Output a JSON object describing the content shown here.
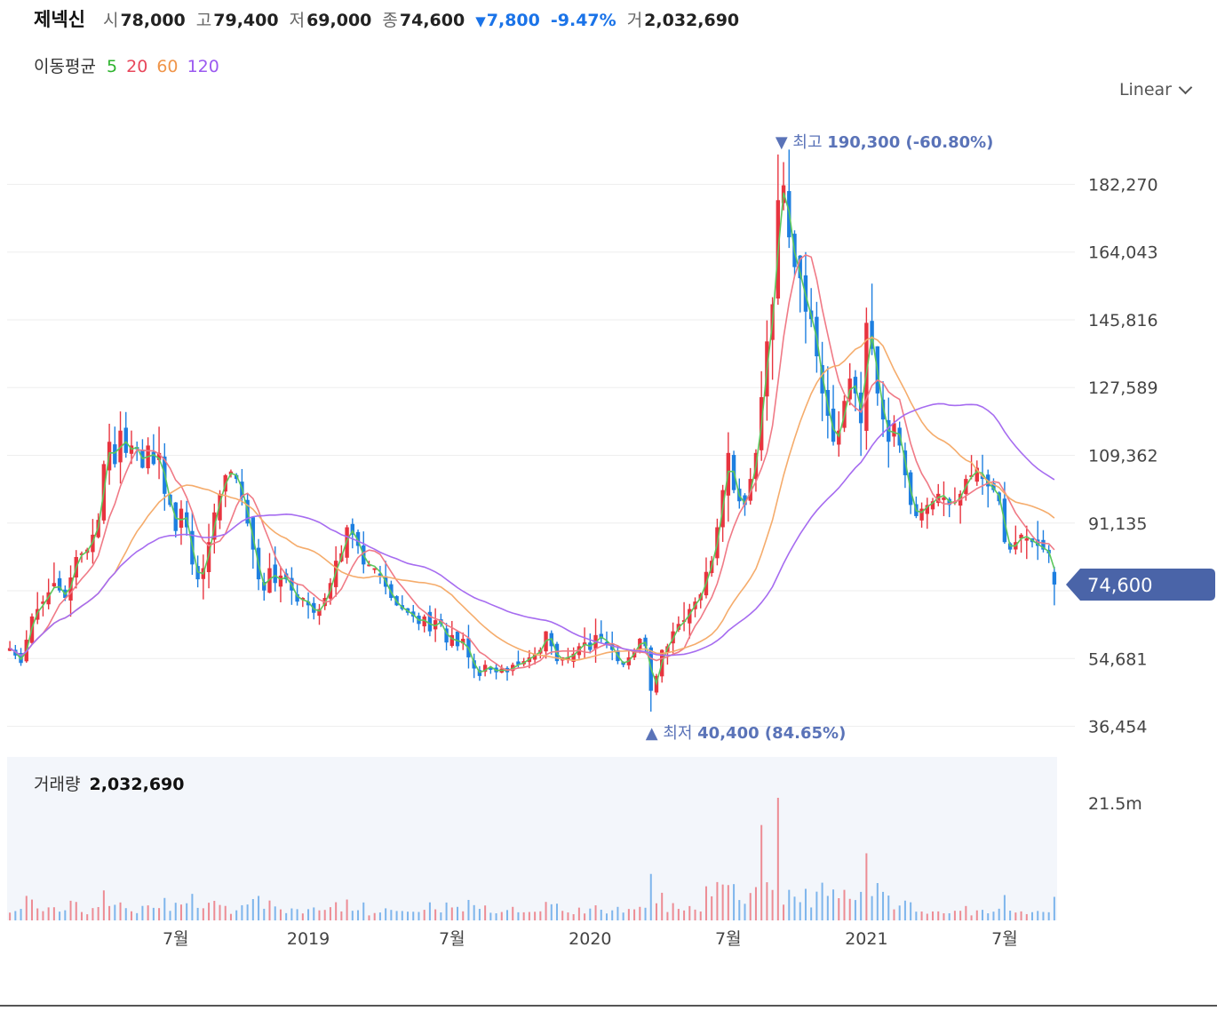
{
  "header": {
    "name": "제넥신",
    "open_label": "시",
    "open": "78,000",
    "high_label": "고",
    "high": "79,400",
    "low_label": "저",
    "low": "69,000",
    "close_label": "종",
    "close": "74,600",
    "change_arrow": "▼",
    "change": "7,800",
    "change_pct": "-9.47%",
    "volume_label": "거",
    "volume": "2,032,690"
  },
  "ma_legend": {
    "title": "이동평균",
    "items": [
      {
        "label": "5",
        "color": "#2db32d"
      },
      {
        "label": "20",
        "color": "#e8475b"
      },
      {
        "label": "60",
        "color": "#f0954a"
      },
      {
        "label": "120",
        "color": "#9b59f0"
      }
    ]
  },
  "scale_select": {
    "value": "Linear"
  },
  "colors": {
    "up": "#e8343f",
    "down": "#1e7fe0",
    "ma5": "#5cc85c",
    "ma20": "#f07a86",
    "ma60": "#f5ac6c",
    "ma120": "#a66cf0",
    "price_tag": "#4a64a8",
    "grid": "#eeeeee",
    "volume_bg": "#f3f6fb",
    "annotation": "#5a73b8"
  },
  "chart_data": {
    "type": "candlestick",
    "price_axis": {
      "ticks": [
        36454,
        54681,
        72908,
        91135,
        109362,
        127589,
        145816,
        164043,
        182270
      ],
      "tick_labels": [
        "36,454",
        "54,681",
        "",
        "91,135",
        "109,362",
        "127,589",
        "145,816",
        "164,043",
        "182,270"
      ],
      "ylim": [
        33000,
        196000
      ]
    },
    "x_axis": {
      "labels": [
        "7월",
        "2019",
        "7월",
        "2020",
        "7월",
        "2021",
        "7월"
      ],
      "label_positions_week": [
        30,
        54,
        80,
        105,
        130,
        155,
        180
      ]
    },
    "current_price": {
      "value": 74600,
      "label": "74,600"
    },
    "max_annotation": {
      "arrow": "▼",
      "label": "최고",
      "value": "190,300",
      "pct": "(-60.80%)",
      "price": 190300,
      "week": 139
    },
    "min_annotation": {
      "arrow": "▲",
      "label": "최저",
      "value": "40,400",
      "pct": "(84.65%)",
      "price": 40400,
      "week": 116
    },
    "weekly_close_anchors": [
      [
        0,
        57500
      ],
      [
        2,
        53500
      ],
      [
        4,
        66000
      ],
      [
        6,
        70000
      ],
      [
        8,
        75000
      ],
      [
        10,
        71000
      ],
      [
        12,
        82000
      ],
      [
        14,
        84000
      ],
      [
        16,
        92000
      ],
      [
        17,
        107000
      ],
      [
        18,
        113000
      ],
      [
        19,
        107000
      ],
      [
        20,
        116000
      ],
      [
        21,
        110000
      ],
      [
        22,
        112000
      ],
      [
        23,
        111000
      ],
      [
        24,
        106000
      ],
      [
        25,
        112000
      ],
      [
        26,
        107000
      ],
      [
        27,
        110000
      ],
      [
        28,
        99000
      ],
      [
        29,
        96000
      ],
      [
        30,
        89000
      ],
      [
        31,
        95000
      ],
      [
        32,
        90000
      ],
      [
        33,
        80000
      ],
      [
        34,
        76000
      ],
      [
        35,
        79000
      ],
      [
        36,
        86000
      ],
      [
        37,
        94000
      ],
      [
        38,
        99000
      ],
      [
        39,
        104000
      ],
      [
        40,
        105000
      ],
      [
        41,
        103000
      ],
      [
        42,
        98000
      ],
      [
        43,
        91000
      ],
      [
        44,
        84000
      ],
      [
        45,
        76000
      ],
      [
        46,
        73000
      ],
      [
        47,
        79000
      ],
      [
        48,
        75000
      ],
      [
        49,
        77000
      ],
      [
        50,
        76000
      ],
      [
        51,
        73000
      ],
      [
        52,
        70000
      ],
      [
        53,
        71000
      ],
      [
        54,
        69000
      ],
      [
        55,
        67000
      ],
      [
        56,
        68000
      ],
      [
        57,
        71000
      ],
      [
        58,
        75000
      ],
      [
        59,
        81000
      ],
      [
        60,
        83000
      ],
      [
        61,
        90000
      ],
      [
        62,
        88000
      ],
      [
        63,
        85000
      ],
      [
        64,
        80000
      ],
      [
        65,
        80000
      ],
      [
        66,
        79000
      ],
      [
        67,
        77000
      ],
      [
        68,
        74000
      ],
      [
        69,
        71000
      ],
      [
        70,
        69000
      ],
      [
        71,
        68000
      ],
      [
        72,
        67000
      ],
      [
        73,
        66000
      ],
      [
        74,
        64000
      ],
      [
        75,
        66000
      ],
      [
        76,
        62000
      ],
      [
        77,
        65000
      ],
      [
        78,
        64000
      ],
      [
        79,
        59000
      ],
      [
        80,
        61000
      ],
      [
        81,
        58000
      ],
      [
        82,
        60000
      ],
      [
        83,
        55000
      ],
      [
        84,
        52000
      ],
      [
        85,
        50000
      ],
      [
        86,
        53000
      ],
      [
        87,
        52000
      ],
      [
        88,
        51000
      ],
      [
        89,
        52000
      ],
      [
        90,
        51000
      ],
      [
        91,
        53000
      ],
      [
        92,
        53000
      ],
      [
        93,
        54000
      ],
      [
        94,
        55000
      ],
      [
        95,
        56000
      ],
      [
        96,
        57000
      ],
      [
        97,
        62000
      ],
      [
        98,
        58000
      ],
      [
        99,
        54000
      ],
      [
        100,
        55000
      ],
      [
        101,
        55000
      ],
      [
        102,
        56000
      ],
      [
        103,
        58000
      ],
      [
        104,
        59000
      ],
      [
        105,
        57000
      ],
      [
        106,
        61000
      ],
      [
        107,
        60000
      ],
      [
        108,
        59000
      ],
      [
        109,
        57000
      ],
      [
        110,
        54000
      ],
      [
        111,
        53000
      ],
      [
        112,
        55000
      ],
      [
        113,
        57000
      ],
      [
        114,
        60000
      ],
      [
        115,
        58000
      ],
      [
        116,
        46000
      ],
      [
        117,
        50000
      ],
      [
        118,
        57000
      ],
      [
        119,
        58000
      ],
      [
        120,
        62000
      ],
      [
        121,
        64000
      ],
      [
        122,
        65000
      ],
      [
        123,
        68000
      ],
      [
        124,
        70000
      ],
      [
        125,
        72000
      ],
      [
        126,
        78000
      ],
      [
        127,
        81000
      ],
      [
        128,
        90000
      ],
      [
        129,
        100000
      ],
      [
        130,
        110000
      ],
      [
        131,
        100000
      ],
      [
        132,
        97000
      ],
      [
        133,
        96000
      ],
      [
        134,
        103000
      ],
      [
        135,
        110000
      ],
      [
        136,
        125000
      ],
      [
        137,
        140000
      ],
      [
        138,
        150000
      ],
      [
        139,
        178000
      ],
      [
        140,
        182000
      ],
      [
        141,
        168000
      ],
      [
        142,
        160000
      ],
      [
        143,
        157000
      ],
      [
        144,
        148000
      ],
      [
        145,
        146000
      ],
      [
        146,
        136000
      ],
      [
        147,
        126000
      ],
      [
        148,
        120000
      ],
      [
        149,
        113000
      ],
      [
        150,
        116000
      ],
      [
        151,
        124000
      ],
      [
        152,
        130000
      ],
      [
        153,
        126000
      ],
      [
        154,
        118000
      ],
      [
        155,
        145000
      ],
      [
        156,
        138000
      ],
      [
        157,
        126000
      ],
      [
        158,
        119000
      ],
      [
        159,
        113000
      ],
      [
        160,
        118000
      ],
      [
        161,
        112000
      ],
      [
        162,
        104000
      ],
      [
        163,
        96000
      ],
      [
        164,
        93000
      ],
      [
        165,
        95000
      ],
      [
        166,
        96000
      ],
      [
        167,
        97000
      ],
      [
        168,
        99000
      ],
      [
        169,
        98000
      ],
      [
        170,
        96000
      ],
      [
        171,
        97000
      ],
      [
        172,
        99000
      ],
      [
        173,
        103000
      ],
      [
        174,
        104000
      ],
      [
        175,
        106000
      ],
      [
        176,
        103000
      ],
      [
        177,
        101000
      ],
      [
        178,
        100000
      ],
      [
        179,
        97000
      ],
      [
        180,
        86000
      ],
      [
        181,
        84000
      ],
      [
        182,
        86000
      ],
      [
        183,
        88000
      ],
      [
        184,
        87000
      ],
      [
        185,
        86000
      ],
      [
        186,
        85000
      ],
      [
        187,
        84000
      ],
      [
        188,
        83000
      ],
      [
        189,
        74600
      ]
    ],
    "volume": {
      "axis_label": "21.5m",
      "axis_value": 21500000,
      "title": "거래량",
      "value": "2,032,690",
      "ylim": [
        0,
        30000000
      ]
    }
  }
}
